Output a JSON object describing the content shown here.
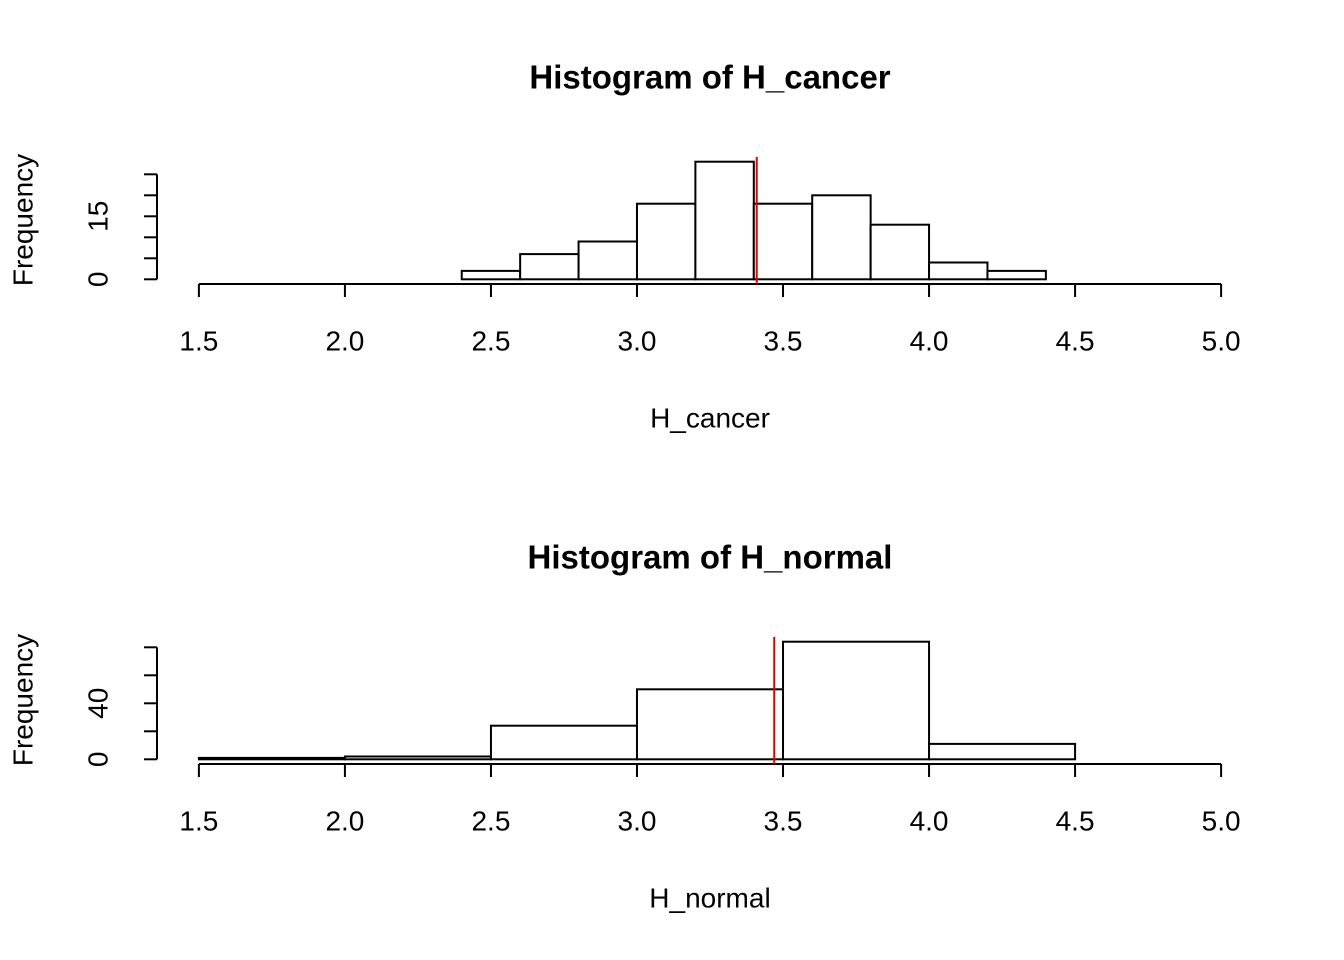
{
  "chart_data": [
    {
      "type": "histogram",
      "title": "Histogram of H_cancer",
      "xlabel": "H_cancer",
      "ylabel": "Frequency",
      "bins": [
        2.4,
        2.6,
        2.8,
        3.0,
        3.2,
        3.4,
        3.6,
        3.8,
        4.0,
        4.2,
        4.4
      ],
      "counts": [
        2,
        6,
        9,
        18,
        28,
        18,
        20,
        13,
        4,
        2
      ],
      "xlim": [
        1.5,
        5.0
      ],
      "xticks": [
        {
          "value": 1.5,
          "label": "1.5"
        },
        {
          "value": 2,
          "label": "2.0"
        },
        {
          "value": 2.5,
          "label": "2.5"
        },
        {
          "value": 3,
          "label": "3.0"
        },
        {
          "value": 3.5,
          "label": "3.5"
        },
        {
          "value": 4,
          "label": "4.0"
        },
        {
          "value": 4.5,
          "label": "4.5"
        },
        {
          "value": 5,
          "label": "5.0"
        }
      ],
      "ylim": [
        0,
        28
      ],
      "yticks": [
        0,
        15
      ],
      "yticks_unlabeled": [
        5,
        10,
        20,
        25
      ],
      "color": "#ffffff",
      "edge_color": "#000000",
      "vline": 3.41,
      "vline_color": "#e00000"
    },
    {
      "type": "histogram",
      "title": "Histogram of H_normal",
      "xlabel": "H_normal",
      "ylabel": "Frequency",
      "bins": [
        1.5,
        2.0,
        2.5,
        3.0,
        3.5,
        4.0,
        4.5
      ],
      "counts": [
        1,
        2,
        24,
        50,
        84,
        11
      ],
      "xlim": [
        1.5,
        5.0
      ],
      "xticks": [
        {
          "value": 1.5,
          "label": "1.5"
        },
        {
          "value": 2,
          "label": "2.0"
        },
        {
          "value": 2.5,
          "label": "2.5"
        },
        {
          "value": 3,
          "label": "3.0"
        },
        {
          "value": 3.5,
          "label": "3.5"
        },
        {
          "value": 4,
          "label": "4.0"
        },
        {
          "value": 4.5,
          "label": "4.5"
        },
        {
          "value": 5,
          "label": "5.0"
        }
      ],
      "ylim": [
        0,
        84
      ],
      "yticks": [
        0,
        40
      ],
      "yticks_unlabeled": [
        20,
        60,
        80
      ],
      "color": "#ffffff",
      "edge_color": "#000000",
      "vline": 3.47,
      "vline_color": "#e00000"
    }
  ]
}
